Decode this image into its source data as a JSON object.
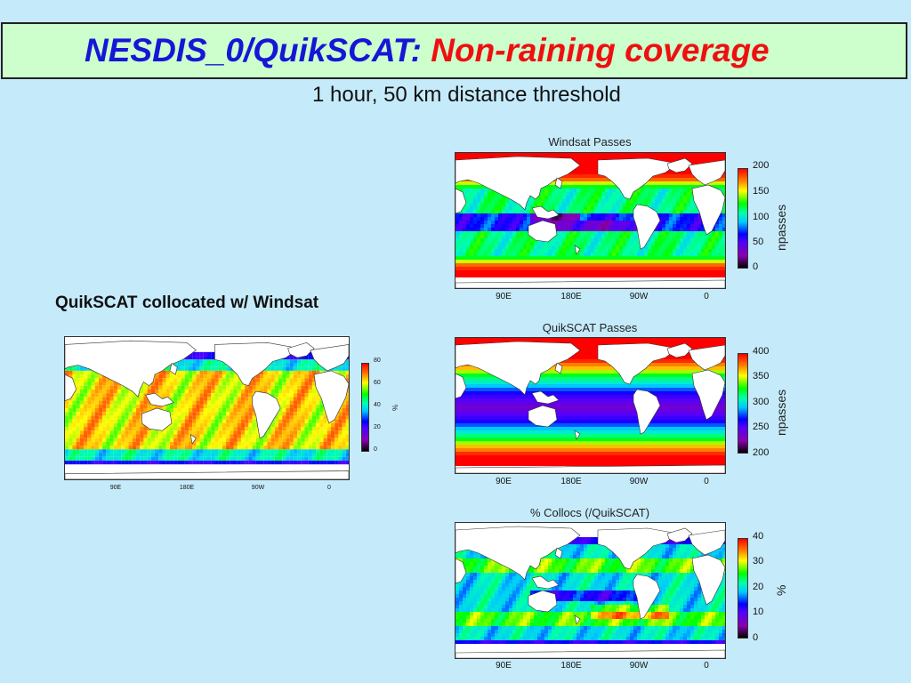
{
  "header": {
    "title_part1": "NESDIS_0/QuikSCAT: ",
    "title_part2": "Non-raining coverage",
    "subtitle": "1 hour, 50 km distance threshold"
  },
  "side_label": "QuikSCAT collocated w/ Windsat",
  "colors": {
    "background": "#c5ebfb",
    "title_box": "#ccffcc",
    "title_blue": "#1616d6",
    "title_red": "#ee1010"
  },
  "panels": {
    "windsat": {
      "title": "Windsat Passes",
      "xticks": [
        "90E",
        "180E",
        "90W",
        "0"
      ],
      "colorbar_ticks": [
        "200",
        "150",
        "100",
        "50",
        "0"
      ],
      "colorbar_unit": "npasses"
    },
    "quikscat": {
      "title": "QuikSCAT Passes",
      "xticks": [
        "90E",
        "180E",
        "90W",
        "0"
      ],
      "colorbar_ticks": [
        "400",
        "350",
        "300",
        "250",
        "200"
      ],
      "colorbar_unit": "npasses"
    },
    "collocs": {
      "title": "% Collocs (/QuikSCAT)",
      "xticks": [
        "90E",
        "180E",
        "90W",
        "0"
      ],
      "colorbar_ticks": [
        "40",
        "30",
        "20",
        "10",
        "0"
      ],
      "colorbar_unit": "%"
    },
    "collocated": {
      "xticks": [
        "90E",
        "180E",
        "90W",
        "0"
      ],
      "colorbar_ticks": [
        "80",
        "60",
        "40",
        "20",
        "0"
      ],
      "colorbar_unit": "%"
    }
  }
}
